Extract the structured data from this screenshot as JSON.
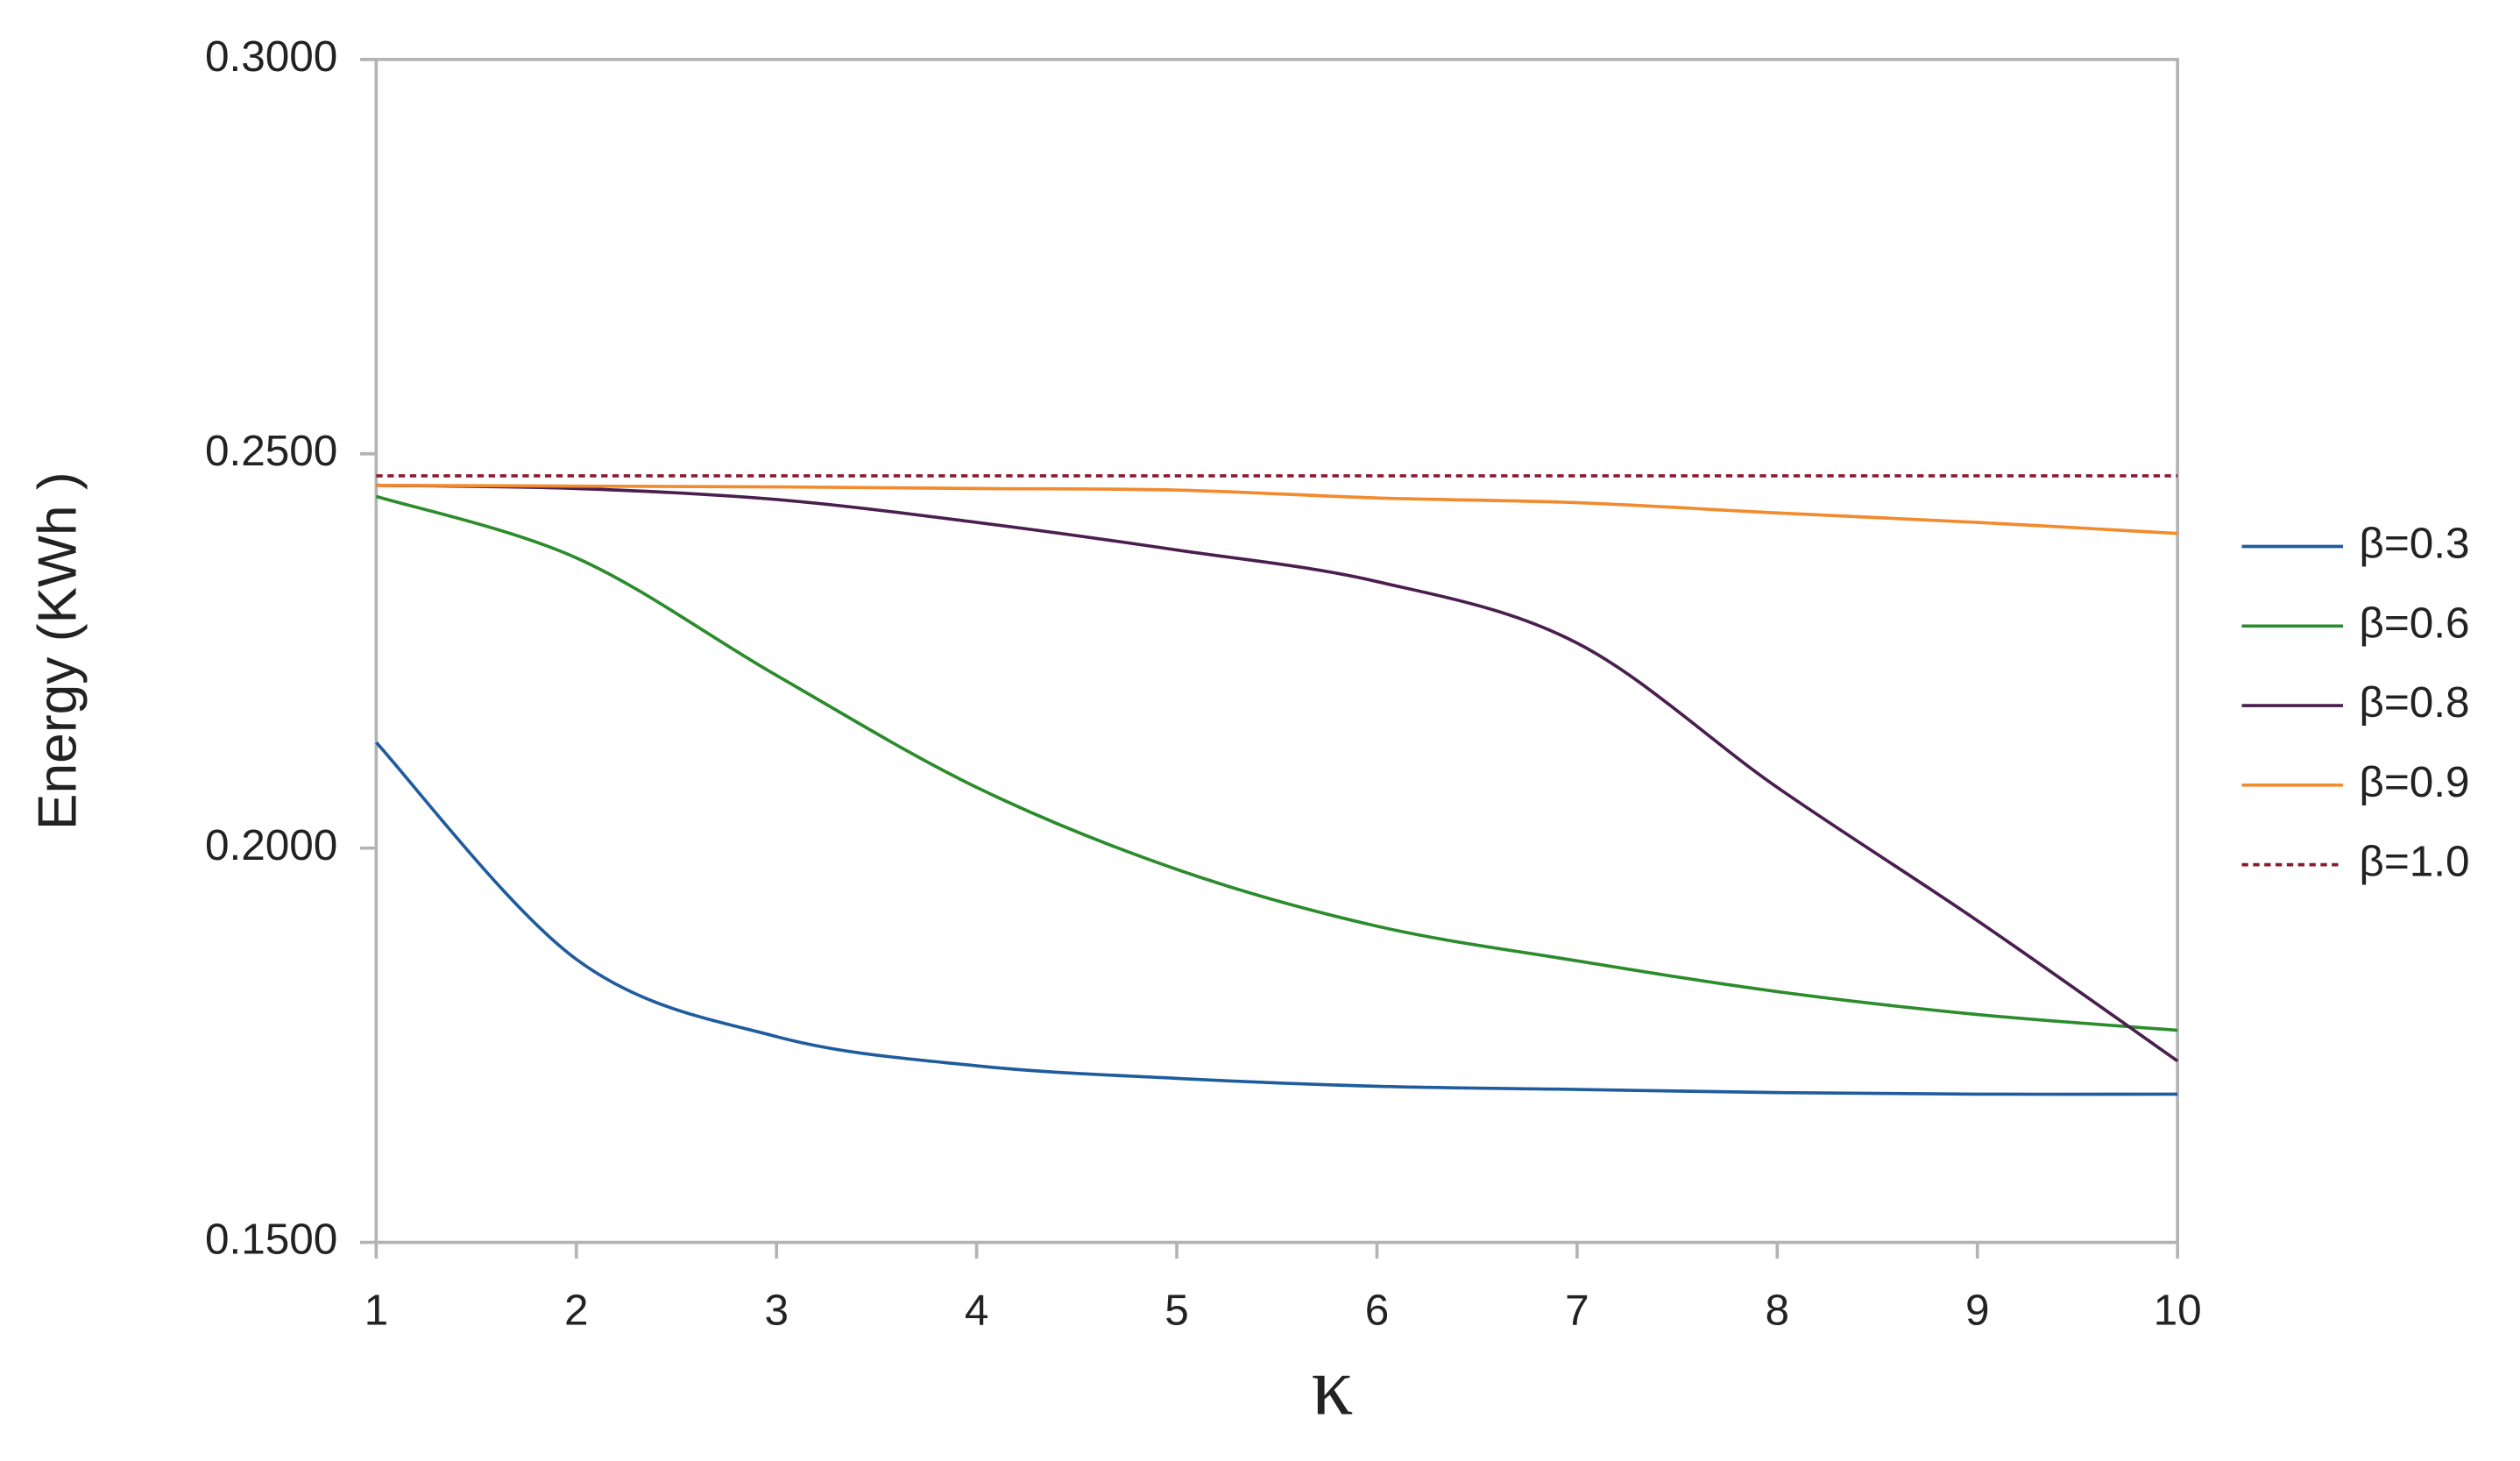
{
  "chart_data": {
    "type": "line",
    "xlabel": "κ",
    "ylabel": "Energy (KWh )",
    "xlim": [
      1,
      10
    ],
    "ylim": [
      0.15,
      0.3
    ],
    "xticks": [
      1,
      2,
      3,
      4,
      5,
      6,
      7,
      8,
      9,
      10
    ],
    "yticks": [
      {
        "value": 0.15,
        "label": "0.1500"
      },
      {
        "value": 0.2,
        "label": "0.2000"
      },
      {
        "value": 0.25,
        "label": "0.2500"
      },
      {
        "value": 0.3,
        "label": "0.3000"
      }
    ],
    "legend": "right",
    "x": [
      1,
      2,
      3,
      4,
      5,
      6,
      7,
      8,
      9,
      10
    ],
    "series": [
      {
        "name": "β=0.3",
        "color": "#1f5c9e",
        "values": [
          0.2134,
          0.1859,
          0.1761,
          0.1724,
          0.1708,
          0.1698,
          0.1694,
          0.169,
          0.1688,
          0.1688
        ]
      },
      {
        "name": "β=0.6",
        "color": "#2c8c2c",
        "values": [
          0.2446,
          0.2368,
          0.2219,
          0.2077,
          0.1973,
          0.1901,
          0.1857,
          0.1818,
          0.1789,
          0.1769
        ]
      },
      {
        "name": "β=0.8",
        "color": "#4a1f4f",
        "values": [
          0.246,
          0.2456,
          0.2442,
          0.2413,
          0.2378,
          0.2338,
          0.226,
          0.2077,
          0.1908,
          0.173
        ]
      },
      {
        "name": "β=0.9",
        "color": "#f28a2e",
        "values": [
          0.246,
          0.2459,
          0.2458,
          0.2456,
          0.2454,
          0.2444,
          0.2438,
          0.2425,
          0.2413,
          0.2399
        ]
      },
      {
        "name": "β=1.0",
        "color": "#8b1a2e",
        "dashed": true,
        "values": [
          0.2472,
          0.2472,
          0.2472,
          0.2472,
          0.2472,
          0.2472,
          0.2472,
          0.2472,
          0.2472,
          0.2472
        ]
      }
    ]
  }
}
